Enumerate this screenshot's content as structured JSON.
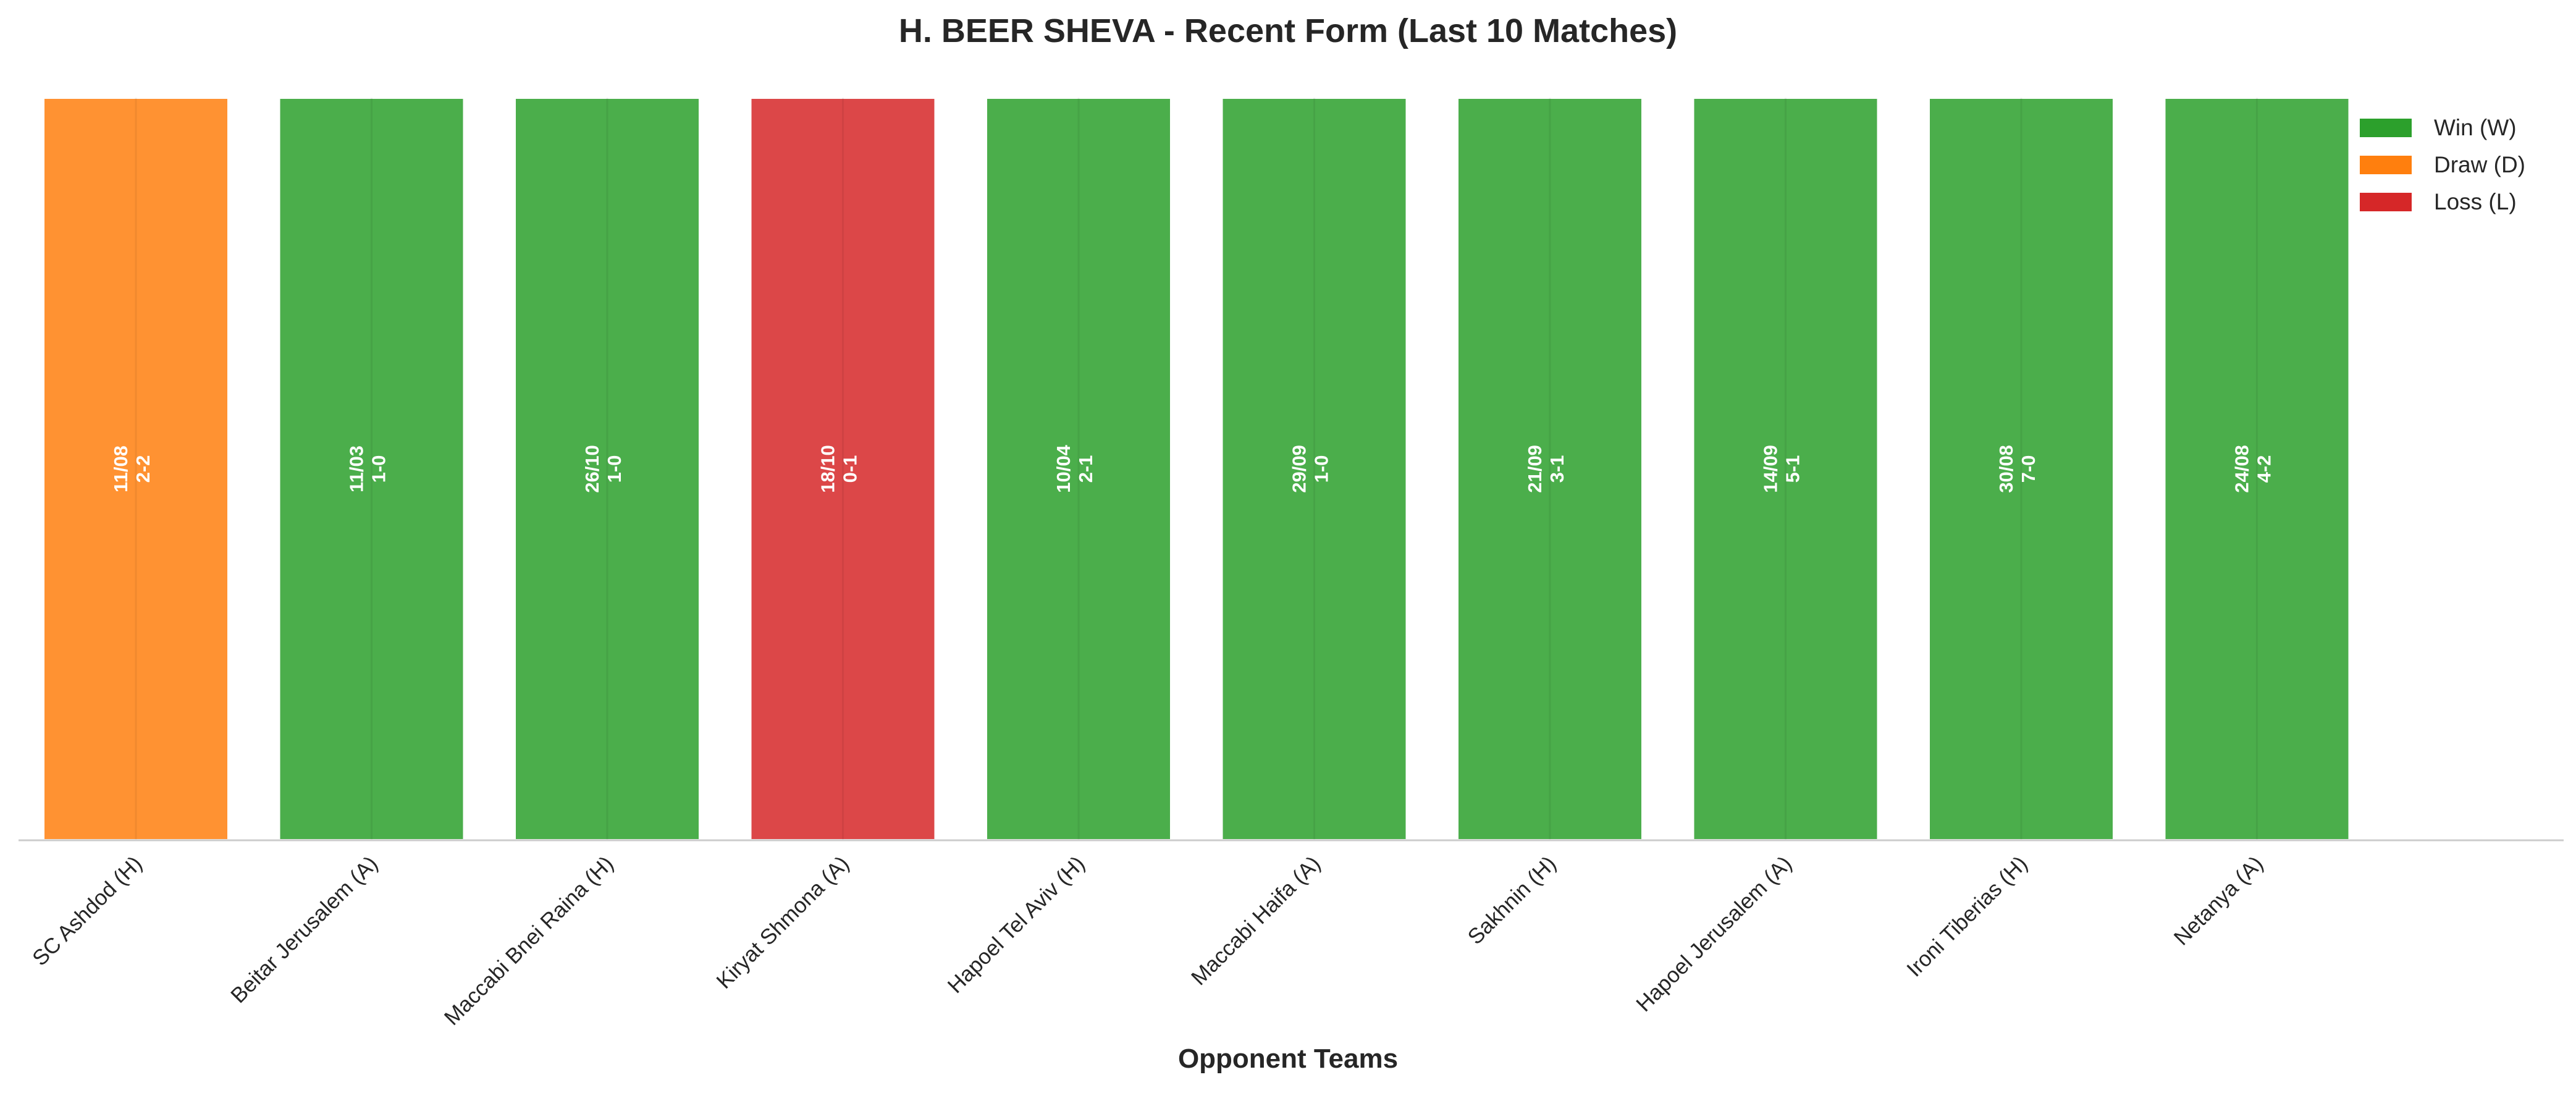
{
  "colors": {
    "W": "#2ca02c",
    "D": "#ff7f0e",
    "L": "#d62728"
  },
  "chart_data": {
    "type": "bar",
    "title": "H. BEER SHEVA - Recent Form (Last 10 Matches)",
    "xlabel": "Opponent Teams",
    "ylabel": "",
    "ylim": [
      0,
      1
    ],
    "grid": false,
    "legend_placement": "top-right",
    "legend": [
      {
        "key": "W",
        "label": "Win (W)"
      },
      {
        "key": "D",
        "label": "Draw (D)"
      },
      {
        "key": "L",
        "label": "Loss (L)"
      }
    ],
    "categories": [
      "SC Ashdod (H)",
      "Beitar Jerusalem (A)",
      "Maccabi Bnei Raina (H)",
      "Kiryat Shmona (A)",
      "Hapoel Tel Aviv (H)",
      "Maccabi Haifa (A)",
      "Sakhnin (H)",
      "Hapoel Jerusalem (A)",
      "Ironi Tiberias (H)",
      "Netanya (A)"
    ],
    "values": [
      1,
      1,
      1,
      1,
      1,
      1,
      1,
      1,
      1,
      1
    ],
    "results": [
      "D",
      "W",
      "W",
      "L",
      "W",
      "W",
      "W",
      "W",
      "W",
      "W"
    ],
    "dates": [
      "11/08",
      "11/03",
      "26/10",
      "18/10",
      "10/04",
      "29/09",
      "21/09",
      "14/09",
      "30/08",
      "24/08"
    ],
    "scores": [
      "2-2",
      "1-0",
      "1-0",
      "0-1",
      "2-1",
      "1-0",
      "3-1",
      "5-1",
      "7-0",
      "4-2"
    ]
  }
}
